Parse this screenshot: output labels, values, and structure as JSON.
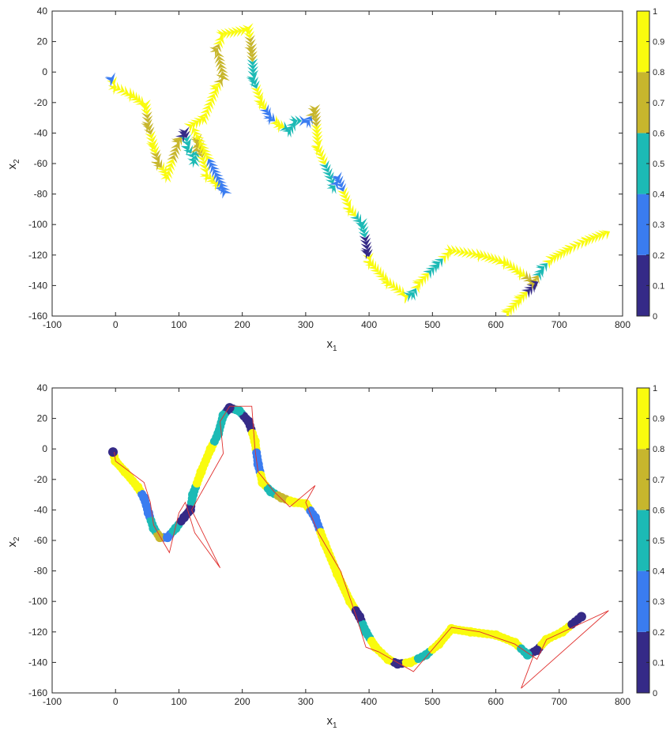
{
  "colors": {
    "levels": [
      "#352a87",
      "#3a7cf0",
      "#1cbab5",
      "#c7b62d",
      "#f9fb0e"
    ],
    "residual": "#e0302e",
    "axis": "#262626"
  },
  "chart_data": [
    {
      "type": "scatter",
      "title": "",
      "xlabel": "x",
      "xlabel_sub": "1",
      "ylabel": "x",
      "ylabel_sub": "2",
      "xlim": [
        -100,
        800
      ],
      "ylim": [
        -160,
        40
      ],
      "xticks": [
        -100,
        0,
        100,
        200,
        300,
        400,
        500,
        600,
        700,
        800
      ],
      "yticks": [
        40,
        20,
        0,
        -20,
        -40,
        -60,
        -80,
        -100,
        -120,
        -140,
        -160
      ],
      "colorbar": {
        "ticks": [
          0,
          0.1,
          0.2,
          0.3,
          0.4,
          0.5,
          0.6,
          0.7,
          0.8,
          0.9,
          1
        ],
        "levels": 5
      },
      "series": [
        {
          "marker": "chevron-arrow",
          "points": [
            {
              "x": -5,
              "y": -5,
              "c": 0.3
            },
            {
              "x": 0,
              "y": -10,
              "c": 1.0
            },
            {
              "x": 25,
              "y": -15,
              "c": 1.0
            },
            {
              "x": 48,
              "y": -22,
              "c": 1.0
            },
            {
              "x": 52,
              "y": -35,
              "c": 0.7
            },
            {
              "x": 60,
              "y": -48,
              "c": 0.9
            },
            {
              "x": 68,
              "y": -60,
              "c": 0.7
            },
            {
              "x": 82,
              "y": -68,
              "c": 1.0
            },
            {
              "x": 100,
              "y": -45,
              "c": 0.7
            },
            {
              "x": 110,
              "y": -40,
              "c": 0.1
            },
            {
              "x": 115,
              "y": -50,
              "c": 0.5
            },
            {
              "x": 125,
              "y": -58,
              "c": 0.5
            },
            {
              "x": 130,
              "y": -45,
              "c": 0.7
            },
            {
              "x": 145,
              "y": -68,
              "c": 1.0
            },
            {
              "x": 160,
              "y": -73,
              "c": 1.0
            },
            {
              "x": 172,
              "y": -78,
              "c": 0.3
            },
            {
              "x": 120,
              "y": -35,
              "c": 0.9
            },
            {
              "x": 140,
              "y": -30,
              "c": 1.0
            },
            {
              "x": 160,
              "y": -10,
              "c": 1.0
            },
            {
              "x": 170,
              "y": -3,
              "c": 0.7
            },
            {
              "x": 160,
              "y": 15,
              "c": 0.7
            },
            {
              "x": 170,
              "y": 25,
              "c": 1.0
            },
            {
              "x": 210,
              "y": 28,
              "c": 1.0
            },
            {
              "x": 215,
              "y": 15,
              "c": 0.7
            },
            {
              "x": 218,
              "y": -5,
              "c": 0.5
            },
            {
              "x": 230,
              "y": -20,
              "c": 1.0
            },
            {
              "x": 245,
              "y": -30,
              "c": 0.3
            },
            {
              "x": 260,
              "y": -35,
              "c": 1.0
            },
            {
              "x": 275,
              "y": -38,
              "c": 0.5
            },
            {
              "x": 285,
              "y": -32,
              "c": 0.5
            },
            {
              "x": 305,
              "y": -32,
              "c": 0.3
            },
            {
              "x": 315,
              "y": -25,
              "c": 0.7
            },
            {
              "x": 320,
              "y": -50,
              "c": 1.0
            },
            {
              "x": 345,
              "y": -75,
              "c": 0.5
            },
            {
              "x": 352,
              "y": -70,
              "c": 0.3
            },
            {
              "x": 370,
              "y": -90,
              "c": 1.0
            },
            {
              "x": 390,
              "y": -100,
              "c": 0.5
            },
            {
              "x": 398,
              "y": -118,
              "c": 0.1
            },
            {
              "x": 402,
              "y": -125,
              "c": 1.0
            },
            {
              "x": 430,
              "y": -138,
              "c": 1.0
            },
            {
              "x": 460,
              "y": -147,
              "c": 1.0
            },
            {
              "x": 470,
              "y": -145,
              "c": 0.5
            },
            {
              "x": 480,
              "y": -138,
              "c": 1.0
            },
            {
              "x": 510,
              "y": -125,
              "c": 0.5
            },
            {
              "x": 530,
              "y": -117,
              "c": 1.0
            },
            {
              "x": 575,
              "y": -120,
              "c": 1.0
            },
            {
              "x": 615,
              "y": -125,
              "c": 1.0
            },
            {
              "x": 640,
              "y": -132,
              "c": 1.0
            },
            {
              "x": 660,
              "y": -138,
              "c": 0.7
            },
            {
              "x": 675,
              "y": -128,
              "c": 0.5
            },
            {
              "x": 690,
              "y": -122,
              "c": 1.0
            },
            {
              "x": 720,
              "y": -115,
              "c": 1.0
            },
            {
              "x": 745,
              "y": -110,
              "c": 1.0
            },
            {
              "x": 778,
              "y": -105,
              "c": 1.0
            },
            {
              "x": 620,
              "y": -157,
              "c": 1.0
            },
            {
              "x": 640,
              "y": -148,
              "c": 1.0
            },
            {
              "x": 665,
              "y": -138,
              "c": 0.1
            }
          ]
        }
      ]
    },
    {
      "type": "scatter",
      "title": "",
      "xlabel": "x",
      "xlabel_sub": "1",
      "ylabel": "x",
      "ylabel_sub": "2",
      "xlim": [
        -100,
        800
      ],
      "ylim": [
        -160,
        40
      ],
      "xticks": [
        -100,
        0,
        100,
        200,
        300,
        400,
        500,
        600,
        700,
        800
      ],
      "yticks": [
        40,
        20,
        0,
        -20,
        -40,
        -60,
        -80,
        -100,
        -120,
        -140,
        -160
      ],
      "colorbar": {
        "ticks": [
          0,
          0.1,
          0.2,
          0.3,
          0.4,
          0.5,
          0.6,
          0.7,
          0.8,
          0.9,
          1
        ],
        "levels": 5
      },
      "series": [
        {
          "marker": "dot-trail",
          "points": [
            {
              "x": -4,
              "y": -2,
              "c": 0.1
            },
            {
              "x": 0,
              "y": -8,
              "c": 1.0
            },
            {
              "x": 15,
              "y": -15,
              "c": 1.0
            },
            {
              "x": 35,
              "y": -25,
              "c": 1.0
            },
            {
              "x": 45,
              "y": -32,
              "c": 0.3
            },
            {
              "x": 52,
              "y": -42,
              "c": 0.3
            },
            {
              "x": 60,
              "y": -52,
              "c": 0.5
            },
            {
              "x": 70,
              "y": -58,
              "c": 0.7
            },
            {
              "x": 82,
              "y": -58,
              "c": 0.3
            },
            {
              "x": 95,
              "y": -52,
              "c": 0.5
            },
            {
              "x": 108,
              "y": -45,
              "c": 0.1
            },
            {
              "x": 118,
              "y": -40,
              "c": 0.1
            },
            {
              "x": 122,
              "y": -30,
              "c": 0.5
            },
            {
              "x": 135,
              "y": -15,
              "c": 1.0
            },
            {
              "x": 150,
              "y": 0,
              "c": 1.0
            },
            {
              "x": 162,
              "y": 10,
              "c": 0.5
            },
            {
              "x": 170,
              "y": 22,
              "c": 0.5
            },
            {
              "x": 180,
              "y": 27,
              "c": 0.1
            },
            {
              "x": 195,
              "y": 25,
              "c": 0.5
            },
            {
              "x": 210,
              "y": 18,
              "c": 0.1
            },
            {
              "x": 220,
              "y": 5,
              "c": 1.0
            },
            {
              "x": 225,
              "y": -10,
              "c": 0.3
            },
            {
              "x": 232,
              "y": -22,
              "c": 1.0
            },
            {
              "x": 245,
              "y": -28,
              "c": 0.5
            },
            {
              "x": 262,
              "y": -32,
              "c": 0.7
            },
            {
              "x": 282,
              "y": -35,
              "c": 1.0
            },
            {
              "x": 300,
              "y": -36,
              "c": 1.0
            },
            {
              "x": 315,
              "y": -45,
              "c": 0.3
            },
            {
              "x": 330,
              "y": -62,
              "c": 1.0
            },
            {
              "x": 350,
              "y": -82,
              "c": 1.0
            },
            {
              "x": 370,
              "y": -100,
              "c": 1.0
            },
            {
              "x": 385,
              "y": -110,
              "c": 0.1
            },
            {
              "x": 395,
              "y": -120,
              "c": 0.5
            },
            {
              "x": 410,
              "y": -130,
              "c": 1.0
            },
            {
              "x": 430,
              "y": -138,
              "c": 1.0
            },
            {
              "x": 445,
              "y": -141,
              "c": 0.1
            },
            {
              "x": 465,
              "y": -140,
              "c": 1.0
            },
            {
              "x": 490,
              "y": -135,
              "c": 0.5
            },
            {
              "x": 510,
              "y": -128,
              "c": 1.0
            },
            {
              "x": 530,
              "y": -118,
              "c": 1.0
            },
            {
              "x": 560,
              "y": -120,
              "c": 1.0
            },
            {
              "x": 600,
              "y": -122,
              "c": 1.0
            },
            {
              "x": 630,
              "y": -127,
              "c": 1.0
            },
            {
              "x": 650,
              "y": -135,
              "c": 0.5
            },
            {
              "x": 665,
              "y": -132,
              "c": 0.1
            },
            {
              "x": 680,
              "y": -125,
              "c": 1.0
            },
            {
              "x": 705,
              "y": -120,
              "c": 1.0
            },
            {
              "x": 735,
              "y": -110,
              "c": 0.1
            }
          ]
        },
        {
          "name": "",
          "marker": "line",
          "points": [
            {
              "x": -2,
              "y": -2
            },
            {
              "x": 0,
              "y": -8
            },
            {
              "x": 45,
              "y": -22
            },
            {
              "x": 55,
              "y": -35
            },
            {
              "x": 60,
              "y": -50
            },
            {
              "x": 85,
              "y": -68
            },
            {
              "x": 100,
              "y": -42
            },
            {
              "x": 110,
              "y": -35
            },
            {
              "x": 125,
              "y": -55
            },
            {
              "x": 165,
              "y": -78
            },
            {
              "x": 120,
              "y": -40
            },
            {
              "x": 170,
              "y": -3
            },
            {
              "x": 165,
              "y": 18
            },
            {
              "x": 180,
              "y": 28
            },
            {
              "x": 215,
              "y": 28
            },
            {
              "x": 220,
              "y": 0
            },
            {
              "x": 225,
              "y": -15
            },
            {
              "x": 250,
              "y": -28
            },
            {
              "x": 275,
              "y": -38
            },
            {
              "x": 315,
              "y": -24
            },
            {
              "x": 300,
              "y": -35
            },
            {
              "x": 320,
              "y": -55
            },
            {
              "x": 355,
              "y": -80
            },
            {
              "x": 380,
              "y": -110
            },
            {
              "x": 395,
              "y": -130
            },
            {
              "x": 415,
              "y": -133
            },
            {
              "x": 470,
              "y": -146
            },
            {
              "x": 530,
              "y": -117
            },
            {
              "x": 575,
              "y": -120
            },
            {
              "x": 630,
              "y": -128
            },
            {
              "x": 665,
              "y": -138
            },
            {
              "x": 680,
              "y": -125
            },
            {
              "x": 778,
              "y": -106
            },
            {
              "x": 640,
              "y": -157
            },
            {
              "x": 660,
              "y": -135
            }
          ]
        }
      ]
    }
  ]
}
